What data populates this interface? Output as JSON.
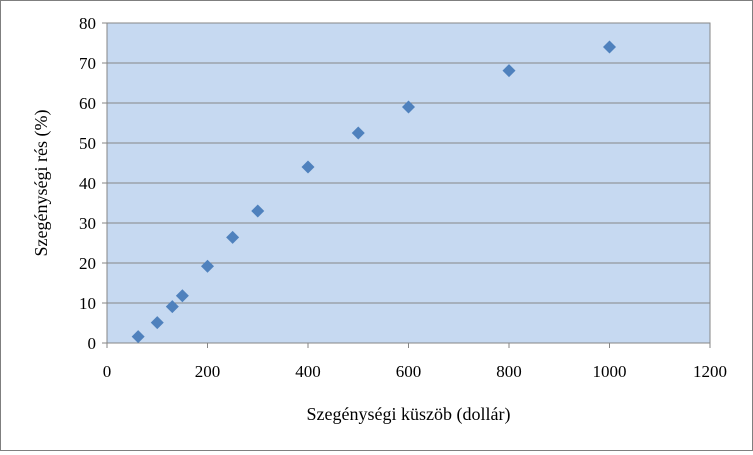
{
  "chart_data": {
    "type": "scatter",
    "title": "",
    "xlabel": "Szegénységi küszöb (dollár)",
    "ylabel": "Szegénységi rés (%)",
    "xlim": [
      0,
      1200
    ],
    "ylim": [
      0,
      80
    ],
    "xticks": [
      0,
      200,
      400,
      600,
      800,
      1000,
      1200
    ],
    "yticks": [
      0,
      10,
      20,
      30,
      40,
      50,
      60,
      70,
      80
    ],
    "grid": true,
    "legend": "none",
    "colors": {
      "plot_background": "#c6d9f1",
      "marker": "#4f81bd",
      "gridline": "#868686"
    },
    "series": [
      {
        "x": [
          62,
          100,
          130,
          150,
          200,
          250,
          300,
          400,
          500,
          600,
          800,
          1000
        ],
        "y": [
          1.6,
          5.1,
          9.1,
          11.8,
          19.2,
          26.4,
          33.0,
          44.0,
          52.5,
          59.0,
          68.1,
          74.0
        ]
      }
    ]
  }
}
